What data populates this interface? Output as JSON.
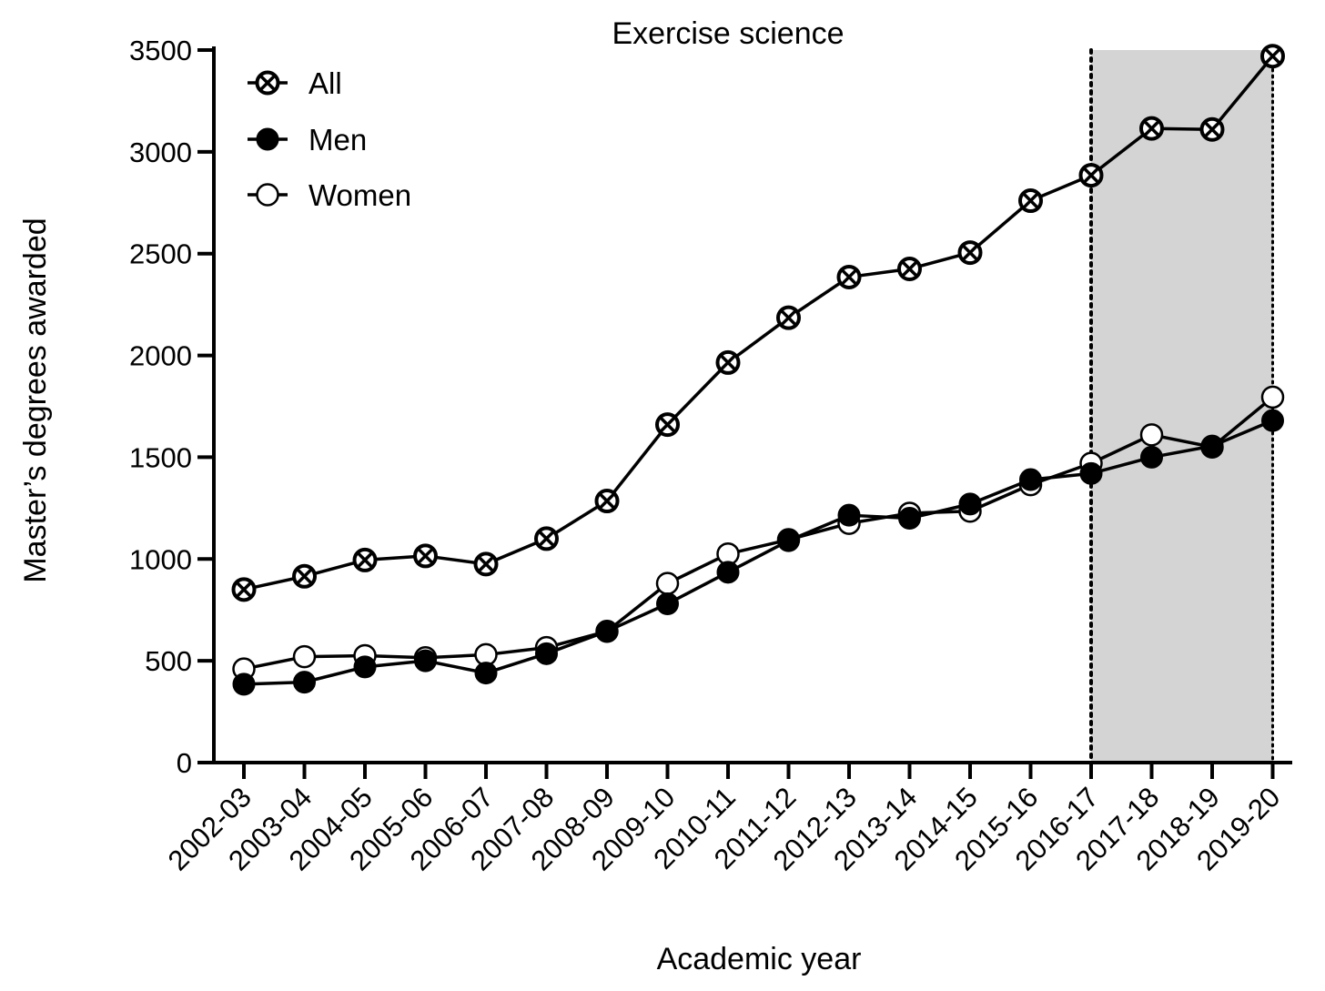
{
  "chart_data": {
    "type": "line",
    "title": "Exercise science",
    "xlabel": "Academic year",
    "ylabel": "Master’s degrees awarded",
    "categories": [
      "2002-03",
      "2003-04",
      "2004-05",
      "2005-06",
      "2006-07",
      "2007-08",
      "2008-09",
      "2009-10",
      "2010-11",
      "2011-12",
      "2012-13",
      "2013-14",
      "2014-15",
      "2015-16",
      "2016-17",
      "2017-18",
      "2018-19",
      "2019-20"
    ],
    "ylim": [
      0,
      3500
    ],
    "yticks": [
      0,
      500,
      1000,
      1500,
      2000,
      2500,
      3000,
      3500
    ],
    "grid": false,
    "legend_position": "top-left",
    "series": [
      {
        "name": "All",
        "marker": "circle-x",
        "values": [
          850,
          915,
          995,
          1015,
          975,
          1100,
          1285,
          1660,
          1965,
          2185,
          2385,
          2425,
          2505,
          2760,
          2885,
          3115,
          3110,
          3470
        ]
      },
      {
        "name": "Men",
        "marker": "filled-circle",
        "values": [
          385,
          395,
          470,
          500,
          440,
          535,
          645,
          780,
          935,
          1090,
          1215,
          1200,
          1270,
          1390,
          1420,
          1500,
          1555,
          1680
        ]
      },
      {
        "name": "Women",
        "marker": "open-circle",
        "values": [
          460,
          520,
          525,
          515,
          530,
          565,
          645,
          880,
          1025,
          1095,
          1175,
          1225,
          1235,
          1365,
          1470,
          1610,
          1550,
          1795
        ]
      }
    ],
    "highlight": {
      "from": "2016-17",
      "to": "2019-20",
      "color": "#d4d4d4"
    },
    "colors": {
      "line": "#000000",
      "marker_fill_open": "#ffffff",
      "marker_fill_filled": "#000000"
    }
  }
}
